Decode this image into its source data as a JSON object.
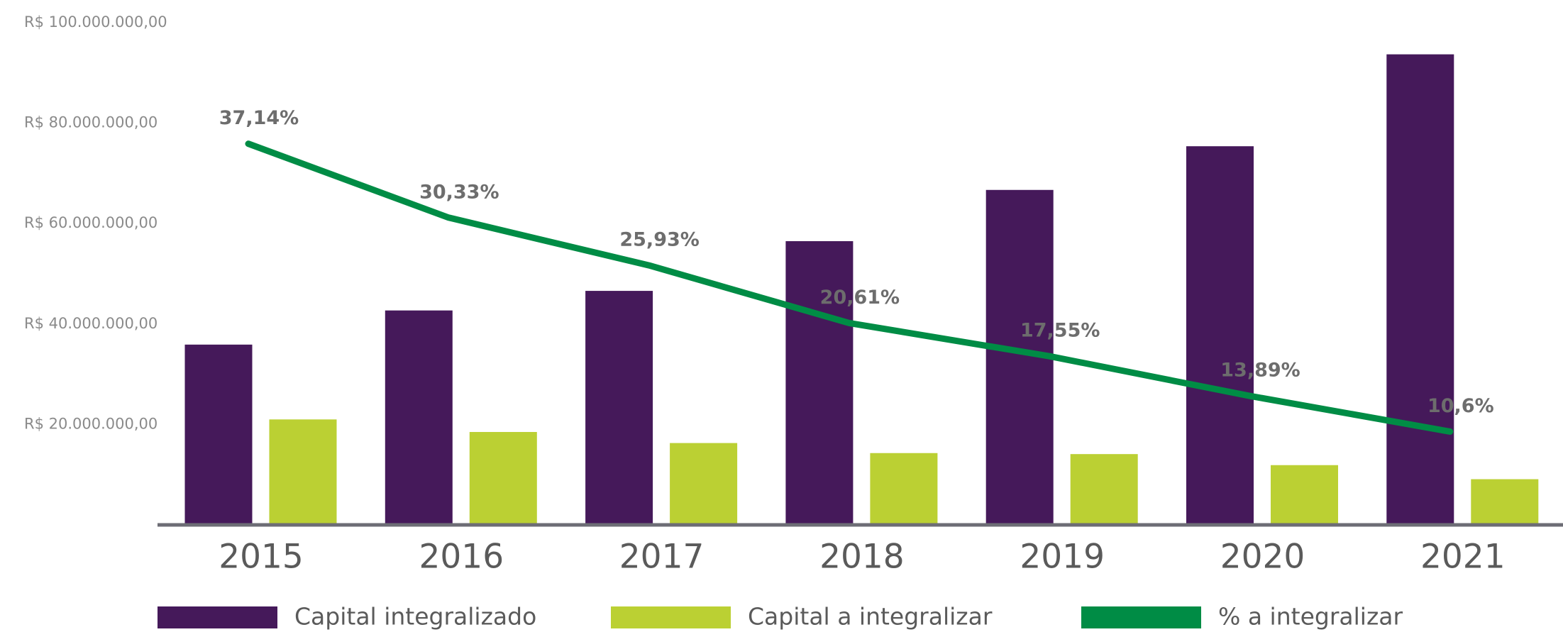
{
  "chart_data": {
    "type": "bar",
    "categories": [
      "2015",
      "2016",
      "2017",
      "2018",
      "2019",
      "2020",
      "2021"
    ],
    "series": [
      {
        "name": "Capital integralizado",
        "color": "#45195a",
        "values": [
          35900000,
          42700000,
          46600000,
          56500000,
          66700000,
          75400000,
          93700000
        ]
      },
      {
        "name": "Capital a integralizar",
        "color": "#bbd033",
        "values": [
          21000000,
          18500000,
          16300000,
          14300000,
          14100000,
          11900000,
          9100000
        ]
      },
      {
        "name": "% a integralizar",
        "color": "#008c45",
        "type": "line",
        "axis": "y2",
        "values": [
          37.14,
          30.33,
          25.93,
          20.61,
          17.55,
          13.89,
          10.6
        ],
        "value_labels": [
          "37,14%",
          "30,33%",
          "25,93%",
          "20,61%",
          "17,55%",
          "13,89%",
          "10,6%"
        ]
      }
    ],
    "ylim": [
      0,
      100000000
    ],
    "yticks": [
      {
        "value": 20000000,
        "label": "R$ 20.000.000,00"
      },
      {
        "value": 40000000,
        "label": "R$ 40.000.000,00"
      },
      {
        "value": 60000000,
        "label": "R$ 60.000.000,00"
      },
      {
        "value": 80000000,
        "label": "R$ 80.000.000,00"
      },
      {
        "value": 100000000,
        "label": "R$ 100.000.000,00"
      }
    ],
    "y2lim": [
      2,
      48.3
    ]
  }
}
